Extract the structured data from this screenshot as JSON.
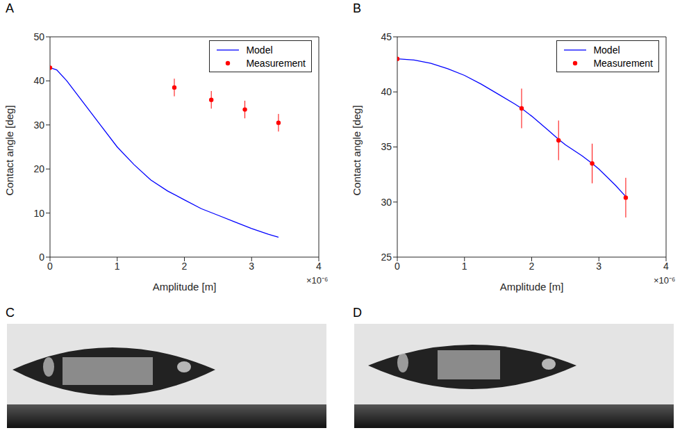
{
  "panel_labels": [
    "A",
    "B",
    "C",
    "D"
  ],
  "chart_data": [
    {
      "type": "line",
      "x_label": "Amplitude [m]",
      "y_label": "Contact angle [deg]",
      "annotations": [
        "×10⁻⁶"
      ],
      "xlim": [
        0,
        4e-06
      ],
      "xticks": [
        0,
        {
          "value": 1e-06,
          "label": "1"
        },
        {
          "value": 2e-06,
          "label": "2"
        },
        {
          "value": 3e-06,
          "label": "3"
        },
        {
          "value": 4e-06,
          "label": "4"
        }
      ],
      "ylim": [
        0,
        50
      ],
      "yticks": [
        0,
        10,
        20,
        30,
        40,
        50
      ],
      "legend": "upper right",
      "series": [
        {
          "name": "Model",
          "type": "line",
          "color": "#0000ff",
          "line_style": "solid",
          "x": [
            0,
            1e-07,
            2.5e-07,
            5e-07,
            7.5e-07,
            1e-06,
            1.25e-06,
            1.5e-06,
            1.75e-06,
            2e-06,
            2.25e-06,
            2.5e-06,
            2.75e-06,
            3e-06,
            3.25e-06,
            3.4e-06
          ],
          "values": [
            43,
            42.5,
            40,
            35,
            30,
            25,
            21,
            17.5,
            15,
            13,
            11,
            9.5,
            8,
            6.5,
            5.2,
            4.5
          ]
        },
        {
          "name": "Measurement",
          "type": "scatter",
          "color": "#ff0000",
          "marker": "circle",
          "x": [
            0,
            1.85e-06,
            2.4e-06,
            2.9e-06,
            3.4e-06
          ],
          "values": [
            43,
            38.5,
            35.7,
            33.5,
            30.5
          ],
          "error": [
            0,
            2,
            2,
            2,
            2
          ]
        }
      ]
    },
    {
      "type": "line",
      "x_label": "Amplitude [m]",
      "y_label": "Contact angle [deg]",
      "annotations": [
        "×10⁻⁶"
      ],
      "xlim": [
        0,
        4e-06
      ],
      "xticks": [
        0,
        {
          "value": 1e-06,
          "label": "1"
        },
        {
          "value": 2e-06,
          "label": "2"
        },
        {
          "value": 3e-06,
          "label": "3"
        },
        {
          "value": 4e-06,
          "label": "4"
        }
      ],
      "ylim": [
        25,
        45
      ],
      "yticks": [
        25,
        30,
        35,
        40,
        45
      ],
      "legend": "upper right",
      "series": [
        {
          "name": "Model",
          "type": "line",
          "color": "#0000ff",
          "line_style": "solid",
          "x": [
            0,
            2.5e-07,
            5e-07,
            7.5e-07,
            1e-06,
            1.25e-06,
            1.5e-06,
            1.75e-06,
            1.85e-06,
            2e-06,
            2.25e-06,
            2.4e-06,
            2.5e-06,
            2.75e-06,
            2.9e-06,
            3e-06,
            3.25e-06,
            3.4e-06
          ],
          "values": [
            43,
            42.9,
            42.6,
            42.1,
            41.5,
            40.7,
            39.8,
            38.9,
            38.5,
            37.8,
            36.5,
            35.7,
            35.2,
            34.2,
            33.5,
            33,
            31.5,
            30.5
          ]
        },
        {
          "name": "Measurement",
          "type": "scatter",
          "color": "#ff0000",
          "marker": "circle",
          "x": [
            0,
            1.85e-06,
            2.4e-06,
            2.9e-06,
            3.4e-06
          ],
          "values": [
            43,
            38.5,
            35.6,
            33.5,
            30.4
          ],
          "error": [
            0,
            1.8,
            1.8,
            1.8,
            1.8
          ]
        }
      ]
    }
  ]
}
